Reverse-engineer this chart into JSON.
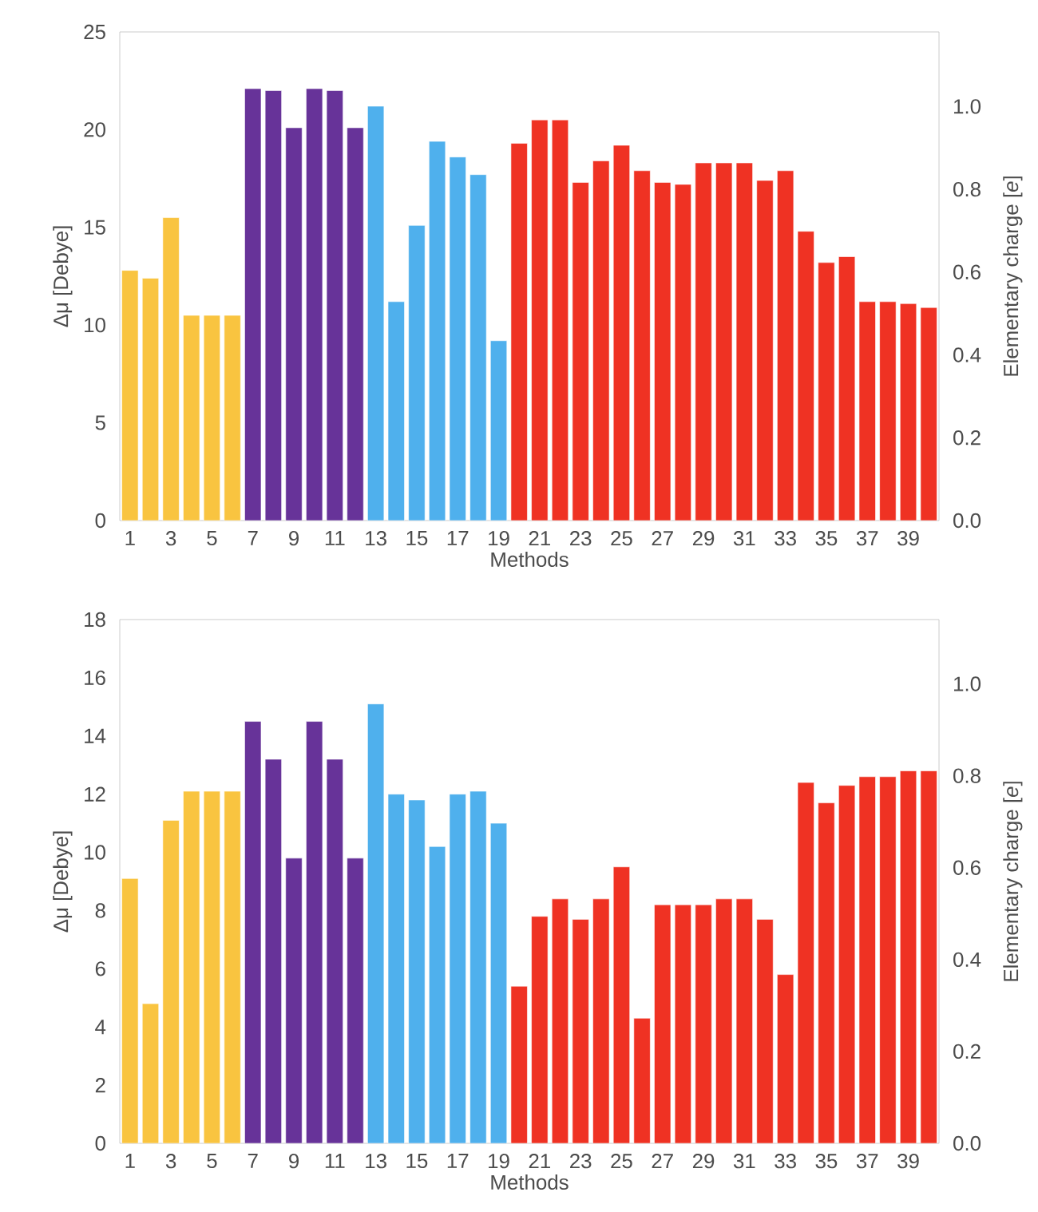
{
  "chart_data": [
    {
      "type": "bar",
      "xlabel": "Methods",
      "ylabel": "Δμ [Debye]",
      "y2label": "Elementary charge [*e*]",
      "categories": [
        "1",
        null,
        "3",
        null,
        "5",
        null,
        "7",
        null,
        "9",
        null,
        "11",
        null,
        "13",
        null,
        "15",
        null,
        "17",
        null,
        "19",
        null,
        "21",
        null,
        "23",
        null,
        "25",
        null,
        "27",
        null,
        "29",
        null,
        "31",
        null,
        "33",
        null,
        "35",
        null,
        "37",
        null,
        "39",
        null
      ],
      "values": [
        12.8,
        12.4,
        15.5,
        10.5,
        10.5,
        10.5,
        22.1,
        22.0,
        20.1,
        22.1,
        22.0,
        20.1,
        21.2,
        11.2,
        15.1,
        19.4,
        18.6,
        17.7,
        9.2,
        19.3,
        20.5,
        20.5,
        17.3,
        18.4,
        19.2,
        17.9,
        17.3,
        17.2,
        18.3,
        18.3,
        18.3,
        17.4,
        17.9,
        14.8,
        13.2,
        13.5,
        11.2,
        11.2,
        11.1,
        10.9
      ],
      "colors": [
        "#f9c440",
        "#f9c440",
        "#f9c440",
        "#f9c440",
        "#f9c440",
        "#f9c440",
        "#673399",
        "#673399",
        "#673399",
        "#673399",
        "#673399",
        "#673399",
        "#4fb0ed",
        "#4fb0ed",
        "#4fb0ed",
        "#4fb0ed",
        "#4fb0ed",
        "#4fb0ed",
        "#4fb0ed",
        "#ef3223",
        "#ef3223",
        "#ef3223",
        "#ef3223",
        "#ef3223",
        "#ef3223",
        "#ef3223",
        "#ef3223",
        "#ef3223",
        "#ef3223",
        "#ef3223",
        "#ef3223",
        "#ef3223",
        "#ef3223",
        "#ef3223",
        "#ef3223",
        "#ef3223",
        "#ef3223",
        "#ef3223",
        "#ef3223",
        "#ef3223"
      ],
      "ylim": [
        0,
        25
      ],
      "yticks": [
        0,
        5,
        10,
        15,
        20,
        25
      ],
      "y2lim": [
        0,
        1.18
      ],
      "y2ticks": [
        {
          "value": 0,
          "label": "0.0"
        },
        {
          "value": 0.2,
          "label": "0.2"
        },
        {
          "value": 0.4,
          "label": "0.4"
        },
        {
          "value": 0.6,
          "label": "0.6"
        },
        {
          "value": 0.8,
          "label": "0.8"
        },
        {
          "value": 1,
          "label": "1.0"
        }
      ]
    },
    {
      "type": "bar",
      "xlabel": "Methods",
      "ylabel": "Δμ [Debye]",
      "y2label": "Elementary charge [*e*]",
      "categories": [
        "1",
        null,
        "3",
        null,
        "5",
        null,
        "7",
        null,
        "9",
        null,
        "11",
        null,
        "13",
        null,
        "15",
        null,
        "17",
        null,
        "19",
        null,
        "21",
        null,
        "23",
        null,
        "25",
        null,
        "27",
        null,
        "29",
        null,
        "31",
        null,
        "33",
        null,
        "35",
        null,
        "37",
        null,
        "39",
        null
      ],
      "values": [
        9.1,
        4.8,
        11.1,
        12.1,
        12.1,
        12.1,
        14.5,
        13.2,
        9.8,
        14.5,
        13.2,
        9.8,
        15.1,
        12.0,
        11.8,
        10.2,
        12.0,
        12.1,
        11.0,
        5.4,
        7.8,
        8.4,
        7.7,
        8.4,
        9.5,
        4.3,
        8.2,
        8.2,
        8.2,
        8.4,
        8.4,
        7.7,
        5.8,
        12.4,
        11.7,
        12.3,
        12.6,
        12.6,
        12.8,
        12.8
      ],
      "colors": [
        "#f9c440",
        "#f9c440",
        "#f9c440",
        "#f9c440",
        "#f9c440",
        "#f9c440",
        "#673399",
        "#673399",
        "#673399",
        "#673399",
        "#673399",
        "#673399",
        "#4fb0ed",
        "#4fb0ed",
        "#4fb0ed",
        "#4fb0ed",
        "#4fb0ed",
        "#4fb0ed",
        "#4fb0ed",
        "#ef3223",
        "#ef3223",
        "#ef3223",
        "#ef3223",
        "#ef3223",
        "#ef3223",
        "#ef3223",
        "#ef3223",
        "#ef3223",
        "#ef3223",
        "#ef3223",
        "#ef3223",
        "#ef3223",
        "#ef3223",
        "#ef3223",
        "#ef3223",
        "#ef3223",
        "#ef3223",
        "#ef3223",
        "#ef3223",
        "#ef3223"
      ],
      "ylim": [
        0,
        18
      ],
      "yticks": [
        0,
        2,
        4,
        6,
        8,
        10,
        12,
        14,
        16,
        18
      ],
      "y2lim": [
        0,
        1.14
      ],
      "y2ticks": [
        {
          "value": 0,
          "label": "0.0"
        },
        {
          "value": 0.2,
          "label": "0.2"
        },
        {
          "value": 0.4,
          "label": "0.4"
        },
        {
          "value": 0.6,
          "label": "0.6"
        },
        {
          "value": 0.8,
          "label": "0.8"
        },
        {
          "value": 1,
          "label": "1.0"
        }
      ]
    }
  ]
}
